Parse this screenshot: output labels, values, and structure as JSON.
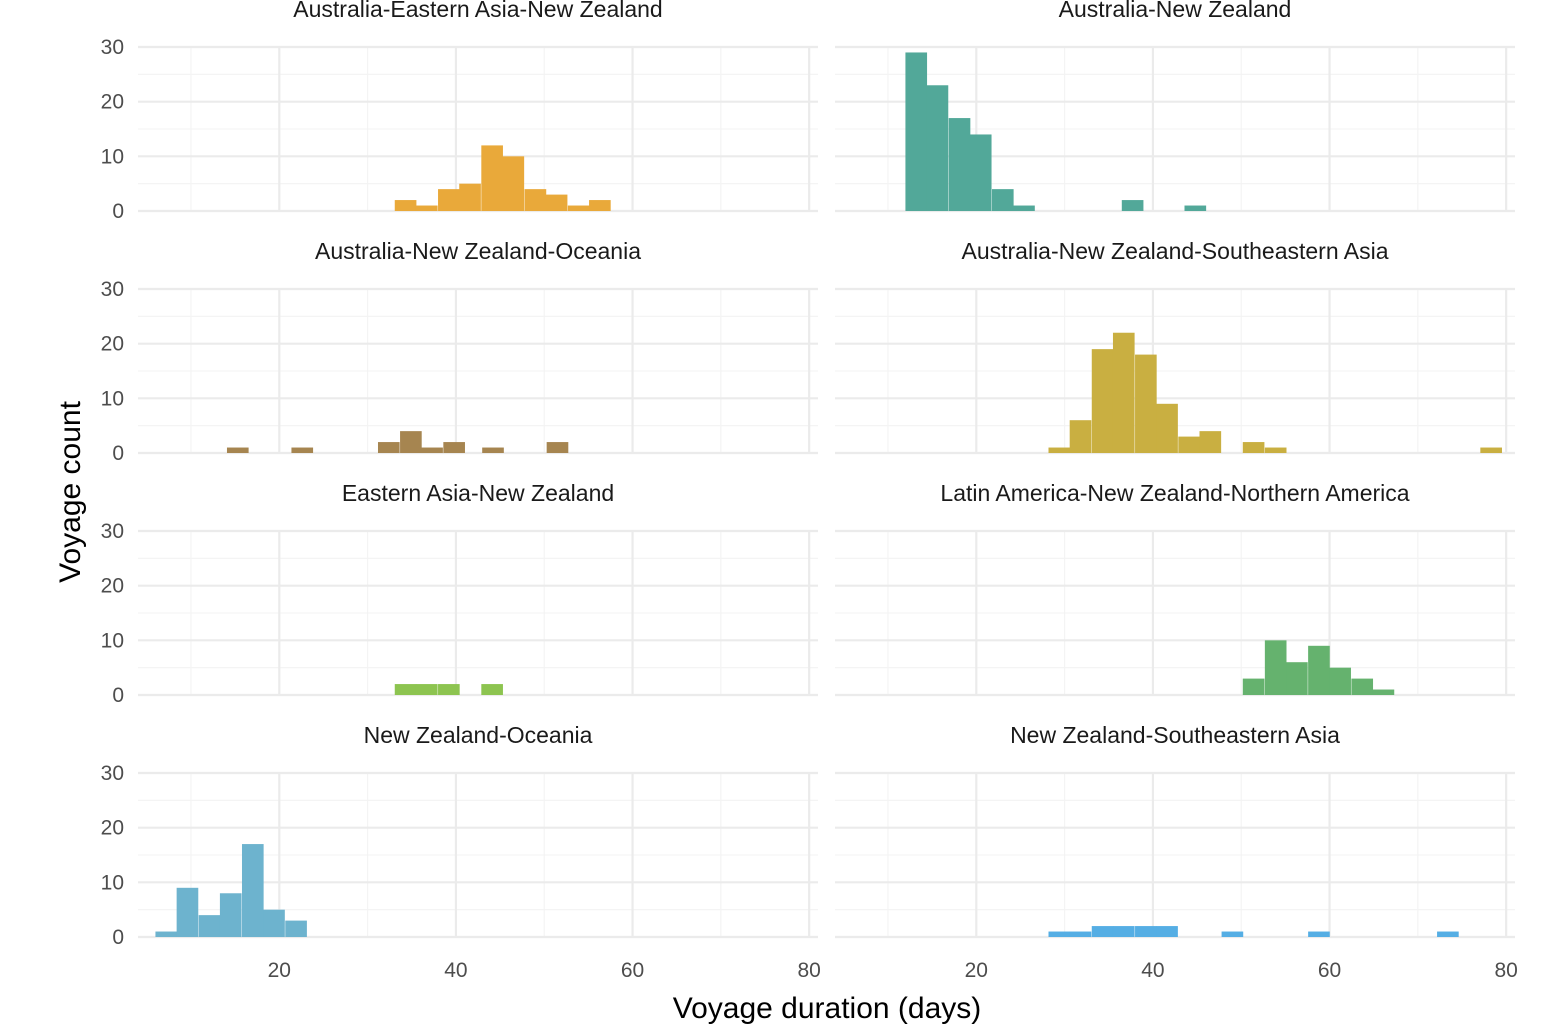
{
  "chart_data": {
    "type": "bar",
    "subtype": "faceted-histogram",
    "xlabel": "Voyage duration (days)",
    "ylabel": "Voyage count",
    "xlim": [
      4,
      81
    ],
    "ylim": [
      0,
      30
    ],
    "x_ticks": [
      20,
      40,
      60,
      80
    ],
    "y_ticks": [
      0,
      10,
      20,
      30
    ],
    "binwidth": 2.45,
    "grid": true,
    "layout": {
      "columns": 2,
      "rows": 4
    },
    "facets": [
      {
        "title": "Australia-Eastern Asia-New Zealand",
        "color": "#E9A93A",
        "bins": [
          {
            "x": 34.3,
            "count": 2
          },
          {
            "x": 36.7,
            "count": 1
          },
          {
            "x": 39.2,
            "count": 4
          },
          {
            "x": 41.6,
            "count": 5
          },
          {
            "x": 44.1,
            "count": 12
          },
          {
            "x": 46.5,
            "count": 10
          },
          {
            "x": 49.0,
            "count": 4
          },
          {
            "x": 51.4,
            "count": 3
          },
          {
            "x": 53.9,
            "count": 1
          },
          {
            "x": 56.3,
            "count": 2
          }
        ]
      },
      {
        "title": "Australia-New Zealand",
        "color": "#52A899",
        "bins": [
          {
            "x": 13.2,
            "count": 29
          },
          {
            "x": 15.6,
            "count": 23
          },
          {
            "x": 18.1,
            "count": 17
          },
          {
            "x": 20.5,
            "count": 14
          },
          {
            "x": 23.0,
            "count": 4
          },
          {
            "x": 25.4,
            "count": 1
          },
          {
            "x": 37.7,
            "count": 2
          },
          {
            "x": 44.8,
            "count": 1
          }
        ]
      },
      {
        "title": "Australia-New Zealand-Oceania",
        "color": "#A68550",
        "bins": [
          {
            "x": 15.3,
            "count": 1
          },
          {
            "x": 22.6,
            "count": 1
          },
          {
            "x": 32.4,
            "count": 2
          },
          {
            "x": 34.9,
            "count": 4
          },
          {
            "x": 37.3,
            "count": 1
          },
          {
            "x": 39.8,
            "count": 2
          },
          {
            "x": 44.2,
            "count": 1
          },
          {
            "x": 51.5,
            "count": 2
          }
        ]
      },
      {
        "title": "Australia-New Zealand-Southeastern Asia",
        "color": "#C9AF41",
        "bins": [
          {
            "x": 29.4,
            "count": 1
          },
          {
            "x": 31.8,
            "count": 6
          },
          {
            "x": 34.3,
            "count": 19
          },
          {
            "x": 36.7,
            "count": 22
          },
          {
            "x": 39.2,
            "count": 18
          },
          {
            "x": 41.6,
            "count": 9
          },
          {
            "x": 44.1,
            "count": 3
          },
          {
            "x": 46.5,
            "count": 4
          },
          {
            "x": 51.4,
            "count": 2
          },
          {
            "x": 53.9,
            "count": 1
          },
          {
            "x": 78.3,
            "count": 1
          }
        ]
      },
      {
        "title": "Eastern Asia-New Zealand",
        "color": "#8DC450",
        "bins": [
          {
            "x": 34.3,
            "count": 2
          },
          {
            "x": 36.7,
            "count": 2
          },
          {
            "x": 39.2,
            "count": 2
          },
          {
            "x": 44.1,
            "count": 2
          }
        ]
      },
      {
        "title": "Latin America-New Zealand-Northern America",
        "color": "#65B26E",
        "bins": [
          {
            "x": 51.4,
            "count": 3
          },
          {
            "x": 53.9,
            "count": 10
          },
          {
            "x": 56.3,
            "count": 6
          },
          {
            "x": 58.8,
            "count": 9
          },
          {
            "x": 61.2,
            "count": 5
          },
          {
            "x": 63.7,
            "count": 3
          },
          {
            "x": 66.1,
            "count": 1
          }
        ]
      },
      {
        "title": "New Zealand-Oceania",
        "color": "#6DB3CE",
        "bins": [
          {
            "x": 7.2,
            "count": 1
          },
          {
            "x": 9.6,
            "count": 9
          },
          {
            "x": 12.1,
            "count": 4
          },
          {
            "x": 14.5,
            "count": 8
          },
          {
            "x": 17.0,
            "count": 17
          },
          {
            "x": 19.4,
            "count": 5
          },
          {
            "x": 21.9,
            "count": 3
          }
        ]
      },
      {
        "title": "New Zealand-Southeastern Asia",
        "color": "#55AEE4",
        "bins": [
          {
            "x": 29.4,
            "count": 1
          },
          {
            "x": 31.8,
            "count": 1
          },
          {
            "x": 34.3,
            "count": 2
          },
          {
            "x": 36.7,
            "count": 2
          },
          {
            "x": 39.2,
            "count": 2
          },
          {
            "x": 41.6,
            "count": 2
          },
          {
            "x": 49.0,
            "count": 1
          },
          {
            "x": 58.8,
            "count": 1
          },
          {
            "x": 73.4,
            "count": 1
          }
        ]
      }
    ]
  }
}
